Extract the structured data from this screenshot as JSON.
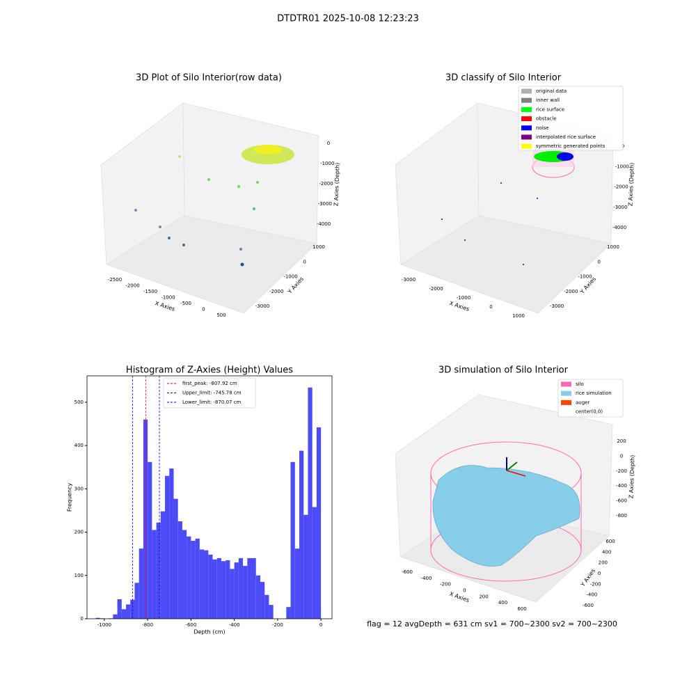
{
  "suptitle": "DTDTR01 2025-10-08 12:23:23",
  "chart_data": [
    {
      "type": "scatter3d",
      "title": "3D Plot of Silo Interior(row data)",
      "xlabel": "X Axies",
      "ylabel": "Y Axies",
      "zlabel": "Z Axies (Depth)",
      "xticks": [
        -2500,
        -2000,
        -1500,
        -1000,
        -500,
        0,
        500
      ],
      "yticks": [
        -3000,
        -2000,
        -1000,
        0,
        1000
      ],
      "zticks": [
        -4000,
        -3000,
        -2000,
        -1000,
        0
      ]
    },
    {
      "type": "scatter3d",
      "title": "3D classify of Silo Interior",
      "xlabel": "X Axies",
      "ylabel": "Y Axies",
      "zlabel": "Z Axies (Depth)",
      "xticks": [
        -3000,
        -2000,
        -1000,
        0,
        1000
      ],
      "yticks": [
        -3000,
        -2000,
        -1000,
        0,
        1000
      ],
      "zticks": [
        -4000,
        -3000,
        -2000,
        -1000,
        0
      ],
      "legend": [
        {
          "name": "original data",
          "color": "#b0b0b0"
        },
        {
          "name": "inner wall",
          "color": "#808080"
        },
        {
          "name": "rice surface",
          "color": "#00ff00"
        },
        {
          "name": "obstacle",
          "color": "#ff0000"
        },
        {
          "name": "noise",
          "color": "#0000ff"
        },
        {
          "name": "interpolated rice surface",
          "color": "#800080"
        },
        {
          "name": "symmetric generated points",
          "color": "#ffff00"
        }
      ]
    },
    {
      "type": "histogram",
      "title": "Histogram of Z-Axies (Height) Values",
      "xlabel": "Depth (cm)",
      "ylabel": "Frequency",
      "color": "#4b4bf7",
      "bins": [
        -1040,
        -1020,
        -1000,
        -980,
        -960,
        -940,
        -920,
        -900,
        -880,
        -860,
        -840,
        -820,
        -800,
        -780,
        -760,
        -740,
        -720,
        -700,
        -680,
        -660,
        -640,
        -620,
        -600,
        -580,
        -560,
        -540,
        -520,
        -500,
        -480,
        -460,
        -440,
        -420,
        -400,
        -380,
        -360,
        -340,
        -320,
        -300,
        -280,
        -260,
        -240,
        -220,
        -200,
        -180,
        -160,
        -140,
        -120,
        -100,
        -80,
        -60,
        -40,
        -20,
        0
      ],
      "counts": [
        2,
        1,
        0,
        1,
        10,
        45,
        22,
        33,
        44,
        83,
        162,
        460,
        362,
        205,
        222,
        248,
        330,
        347,
        277,
        225,
        205,
        190,
        180,
        185,
        160,
        158,
        148,
        137,
        140,
        133,
        135,
        115,
        130,
        140,
        122,
        140,
        140,
        100,
        85,
        55,
        32,
        0,
        0,
        0,
        27,
        362,
        162,
        388,
        240,
        534,
        258,
        442
      ],
      "lines": [
        {
          "label": "first_peak: -807.92 cm",
          "value": -807.92,
          "color": "#ff0000"
        },
        {
          "label": "Upper_limit: -745.78 cm",
          "value": -745.78,
          "color": "#0000ff"
        },
        {
          "label": "Lower_limit: -870.07 cm",
          "value": -870.07,
          "color": "#0000ff"
        }
      ],
      "xlim": [
        -1080,
        51
      ],
      "ylim": [
        0,
        561
      ],
      "xticks": [
        -1000,
        -800,
        -600,
        -400,
        -200,
        0
      ],
      "yticks": [
        0,
        100,
        200,
        300,
        400,
        500
      ]
    },
    {
      "type": "surface3d",
      "title": "3D simulation of Silo Interior",
      "xlabel": "X Axies",
      "ylabel": "Y Axies",
      "zlabel": "Z Axies (Depth)",
      "xticks": [
        -600,
        -400,
        -200,
        0,
        200,
        400,
        600
      ],
      "yticks": [
        -600,
        -400,
        -200,
        0,
        200,
        400,
        600
      ],
      "zticks": [
        -800,
        -600,
        -400,
        -200,
        0,
        200
      ],
      "legend": [
        {
          "name": "silo",
          "color": "#ff69b4"
        },
        {
          "name": "rice simulation",
          "color": "#87ceeb"
        },
        {
          "name": "auger",
          "color": "#ff4500"
        },
        {
          "name": "center(0,0)",
          "color": "#ffffff"
        }
      ],
      "annotation": "flag = 12  avgDepth = 631 cm  sv1 = 700~2300  sv2 = 700~2300"
    }
  ]
}
